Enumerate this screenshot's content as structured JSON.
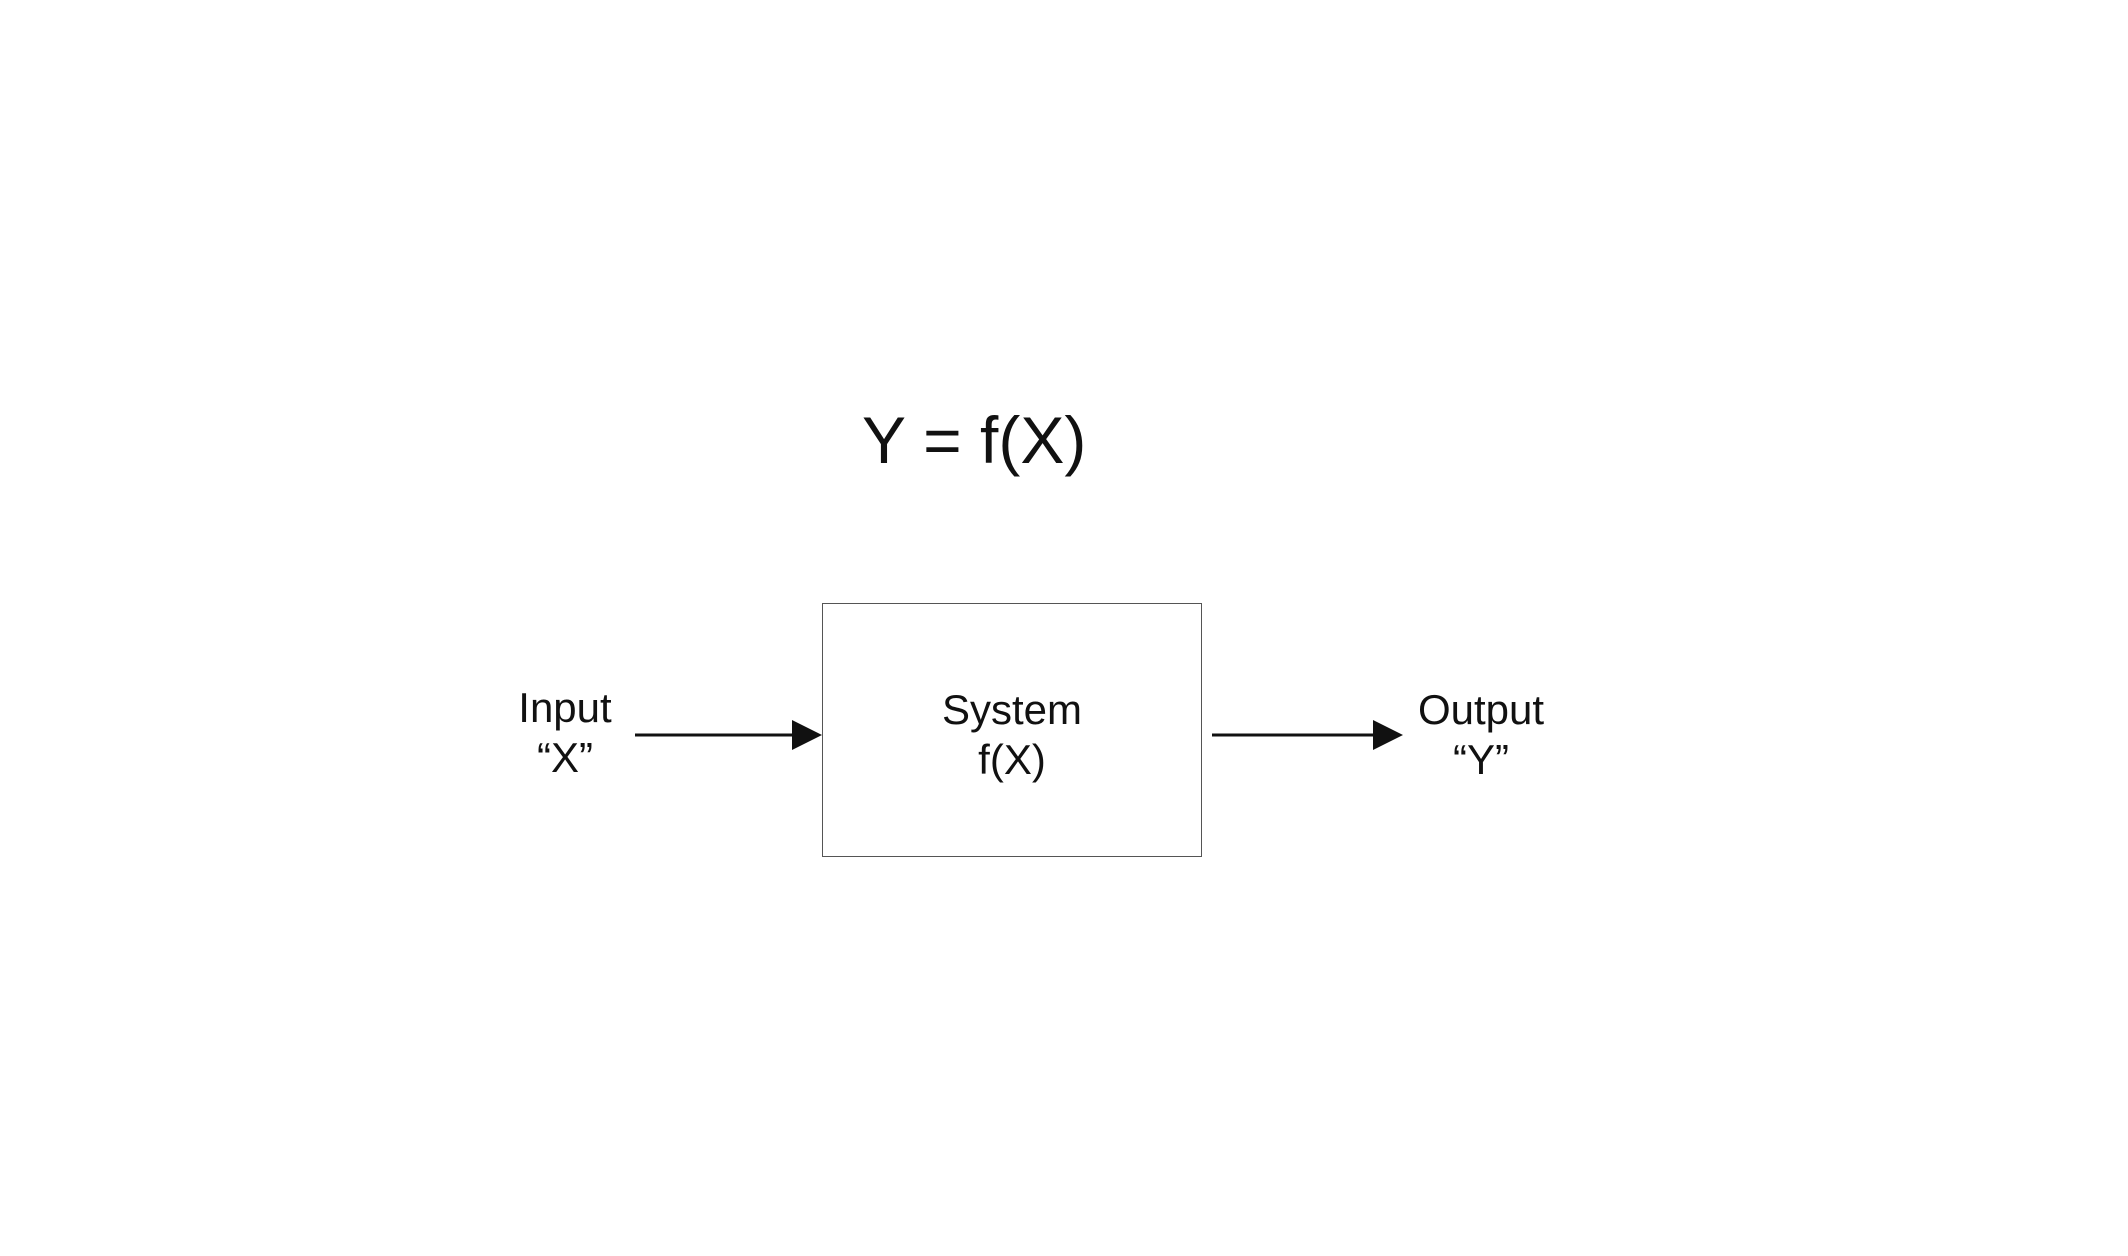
{
  "diagram": {
    "equation": "Y = f(X)",
    "input": {
      "line1": "Input",
      "line2": "“X”"
    },
    "system": {
      "line1": "System",
      "line2": "f(X)"
    },
    "output": {
      "line1": "Output",
      "line2": "“Y”"
    }
  },
  "colors": {
    "background": "#ffffff",
    "text": "#111111",
    "box_border": "#555555",
    "arrow": "#111111"
  }
}
